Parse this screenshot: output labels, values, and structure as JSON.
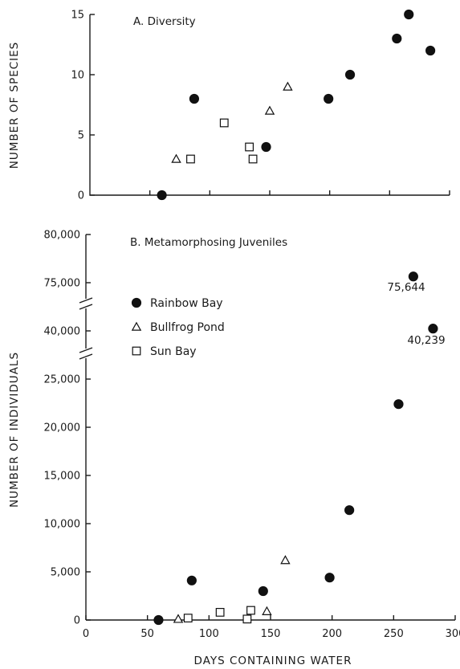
{
  "chart_data": [
    {
      "type": "scatter",
      "title": "A. Diversity",
      "xlabel": "",
      "ylabel": "NUMBER OF SPECIES",
      "xlim": [
        0,
        300
      ],
      "ylim": [
        0,
        15
      ],
      "yticks": [
        0,
        5,
        10,
        15
      ],
      "grid": false,
      "series": [
        {
          "name": "Rainbow Bay",
          "marker": "filled-circle",
          "points": [
            [
              60,
              0
            ],
            [
              87,
              8
            ],
            [
              147,
              4
            ],
            [
              199,
              8
            ],
            [
              217,
              10
            ],
            [
              256,
              13
            ],
            [
              266,
              15
            ],
            [
              284,
              12
            ]
          ]
        },
        {
          "name": "Bullfrog Pond",
          "marker": "open-triangle",
          "points": [
            [
              72,
              3
            ],
            [
              150,
              7
            ],
            [
              165,
              9
            ]
          ]
        },
        {
          "name": "Sun Bay",
          "marker": "open-square",
          "points": [
            [
              84,
              3
            ],
            [
              112,
              6
            ],
            [
              133,
              4
            ],
            [
              136,
              3
            ]
          ]
        }
      ]
    },
    {
      "type": "scatter",
      "title": "B. Metamorphosing Juveniles",
      "xlabel": "DAYS CONTAINING WATER",
      "ylabel": "NUMBER OF INDIVIDUALS",
      "xlim": [
        0,
        300
      ],
      "ylim": [
        0,
        80000
      ],
      "y_axis_breaks": [
        "between 25,000 and 40,000",
        "between 40,000 and 75,000"
      ],
      "yticks_lower": [
        0,
        5000,
        10000,
        15000,
        20000,
        25000
      ],
      "yticks_upper": [
        40000,
        75000,
        80000
      ],
      "ytick_labels": [
        "0",
        "5,000",
        "10,000",
        "15,000",
        "20,000",
        "25,000",
        "40,000",
        "75,000",
        "80,000"
      ],
      "xticks": [
        0,
        50,
        100,
        150,
        200,
        250,
        300
      ],
      "xtick_labels": [
        "0",
        "50",
        "100",
        "150",
        "200",
        "250",
        "300"
      ],
      "legend_position": "upper-left",
      "grid": false,
      "series": [
        {
          "name": "Rainbow Bay",
          "marker": "filled-circle",
          "points": [
            [
              59,
              0
            ],
            [
              86,
              4100
            ],
            [
              144,
              3000
            ],
            [
              198,
              4400
            ],
            [
              214,
              11400
            ],
            [
              254,
              22400
            ],
            [
              266,
              75644
            ],
            [
              282,
              40239
            ]
          ]
        },
        {
          "name": "Bullfrog Pond",
          "marker": "open-triangle",
          "points": [
            [
              75,
              100
            ],
            [
              147,
              900
            ],
            [
              162,
              6200
            ]
          ]
        },
        {
          "name": "Sun Bay",
          "marker": "open-square",
          "points": [
            [
              83,
              200
            ],
            [
              109,
              800
            ],
            [
              131,
              100
            ],
            [
              134,
              1000
            ]
          ]
        }
      ],
      "annotations": [
        "75,644",
        "40,239"
      ]
    }
  ]
}
